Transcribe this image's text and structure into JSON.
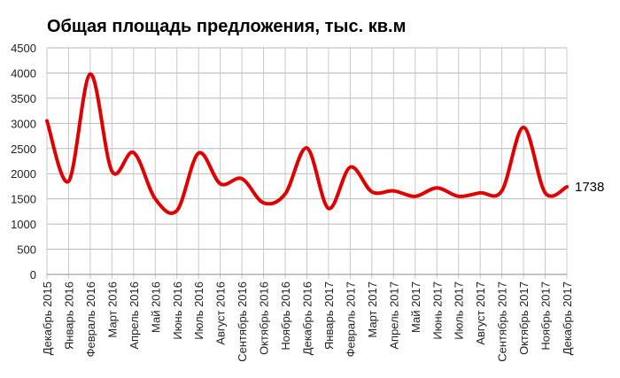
{
  "chart_data": {
    "type": "line",
    "title": "Общая площадь предложения, тыс. кв.м",
    "xlabel": "",
    "ylabel": "",
    "ylim": [
      0,
      4500
    ],
    "yticks": [
      "0",
      "500",
      "1000",
      "1500",
      "2000",
      "2500",
      "3000",
      "3500",
      "4000",
      "4500"
    ],
    "grid": true,
    "line_color": "#e00000",
    "categories": [
      "Декабрь 2015",
      "Январь 2016",
      "Февраль 2016",
      "Март 2016",
      "Апрель 2016",
      "Май 2016",
      "Июнь 2016",
      "Июль 2016",
      "Август 2016",
      "Сентябрь 2016",
      "Октябрь 2016",
      "Ноябрь 2016",
      "Декабрь 2016",
      "Январь 2017",
      "Февраль 2017",
      "Март 2017",
      "Апрель 2017",
      "Май 2017",
      "Июнь 2017",
      "Июль 2017",
      "Август 2017",
      "Сентябрь 2017",
      "Октябрь 2017",
      "Ноябрь 2017",
      "Декабрь 2017"
    ],
    "values": [
      3050,
      1850,
      3980,
      2050,
      2420,
      1500,
      1270,
      2410,
      1800,
      1900,
      1420,
      1600,
      2510,
      1310,
      2130,
      1640,
      1660,
      1550,
      1720,
      1550,
      1620,
      1660,
      2920,
      1620,
      1738
    ],
    "end_label": "1738"
  }
}
